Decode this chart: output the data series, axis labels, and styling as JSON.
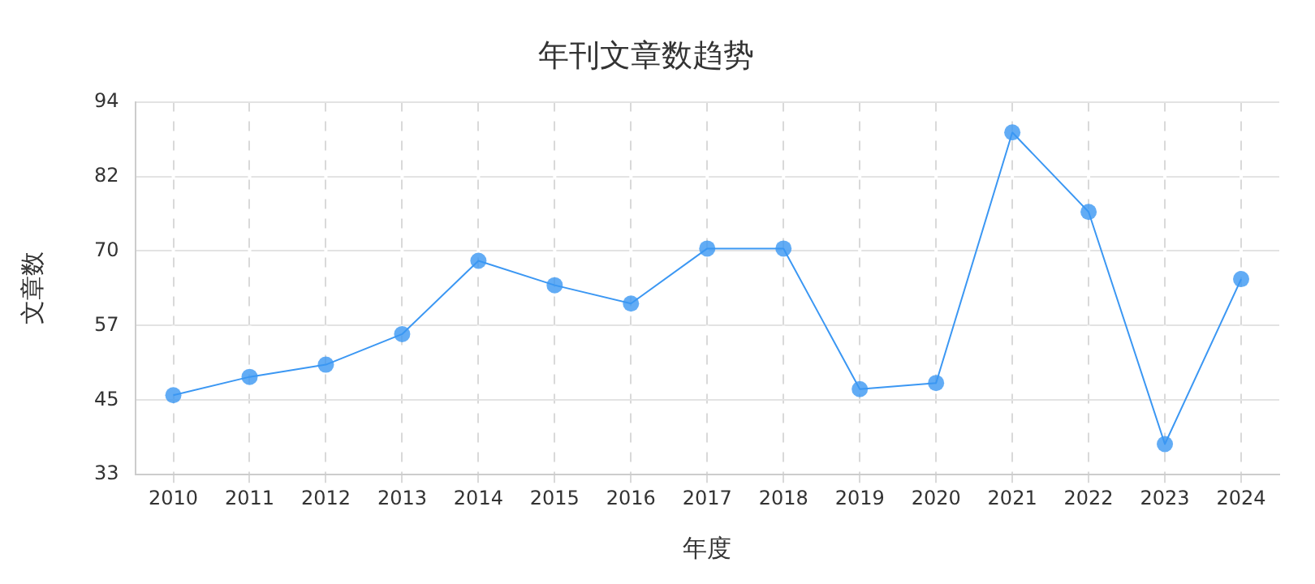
{
  "chart_data": {
    "type": "line",
    "title": "年刊文章数趋势",
    "xlabel": "年度",
    "ylabel": "文章数",
    "categories": [
      "2010",
      "2011",
      "2012",
      "2013",
      "2014",
      "2015",
      "2016",
      "2017",
      "2018",
      "2019",
      "2020",
      "2021",
      "2022",
      "2023",
      "2024"
    ],
    "series": [
      {
        "color": "#3b97f3",
        "values": [
          46,
          49,
          51,
          56,
          68,
          64,
          61,
          70,
          70,
          47,
          48,
          89,
          76,
          38,
          65
        ]
      }
    ],
    "ylim": [
      33,
      94
    ],
    "yticks": [
      33,
      {
        "value": 45.2,
        "label": "45"
      },
      {
        "value": 57.4,
        "label": "57"
      },
      {
        "value": 69.6,
        "label": "70"
      },
      {
        "value": 81.8,
        "label": "82"
      },
      94
    ],
    "grid": true,
    "legend": false,
    "marker": "circle",
    "line_style": "solid"
  }
}
